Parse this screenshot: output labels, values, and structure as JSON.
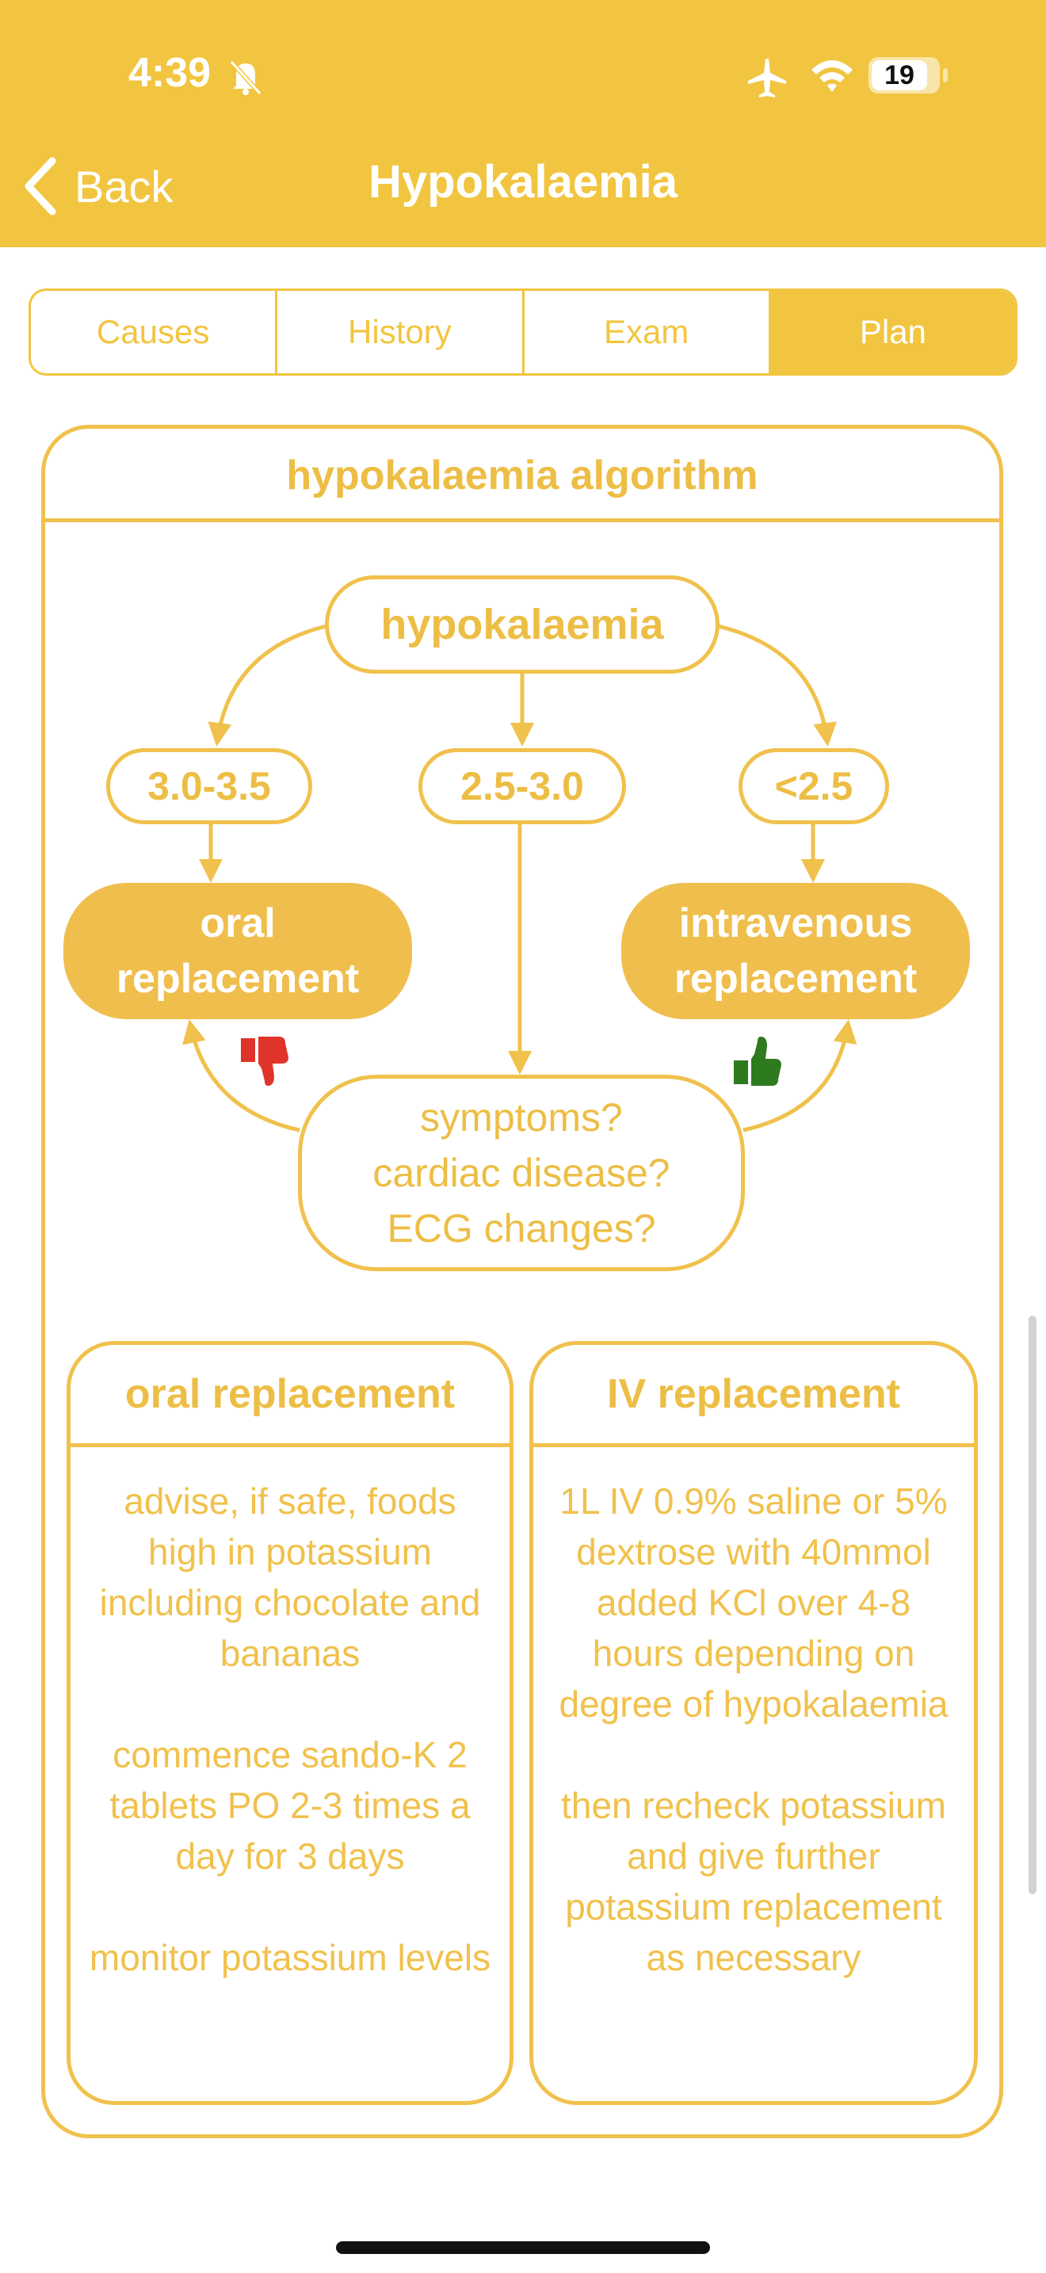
{
  "status": {
    "time": "4:39",
    "battery": "19"
  },
  "nav": {
    "back_label": "Back",
    "title": "Hypokalaemia"
  },
  "tabs": [
    {
      "label": "Causes",
      "active": false
    },
    {
      "label": "History",
      "active": false
    },
    {
      "label": "Exam",
      "active": false
    },
    {
      "label": "Plan",
      "active": true
    }
  ],
  "algorithm": {
    "title": "hypokalaemia algorithm",
    "root": "hypokalaemia",
    "ranges": [
      "3.0-3.5",
      "2.5-3.0",
      "<2.5"
    ],
    "oral_box": [
      "oral",
      "replacement"
    ],
    "iv_box": [
      "intravenous",
      "replacement"
    ],
    "question": [
      "symptoms?",
      "cardiac disease?",
      "ECG changes?"
    ],
    "colors": {
      "accent": "#F0C14C",
      "header": "#F2C540",
      "thumb_down": "#E0342A",
      "thumb_up": "#2E7A1E"
    }
  },
  "oral_card": {
    "title": "oral replacement",
    "paragraphs": [
      "advise, if safe, foods high in potassium including chocolate and bananas",
      "commence sando-K 2 tablets PO 2-3 times a day for 3 days",
      "monitor potassium levels"
    ]
  },
  "iv_card": {
    "title": "IV replacement",
    "paragraphs": [
      "1L IV 0.9% saline or 5% dextrose with 40mmol added KCl over 4-8 hours depending on degree of hypokalaemia",
      "then recheck potassium and give further potassium replacement as necessary"
    ]
  }
}
